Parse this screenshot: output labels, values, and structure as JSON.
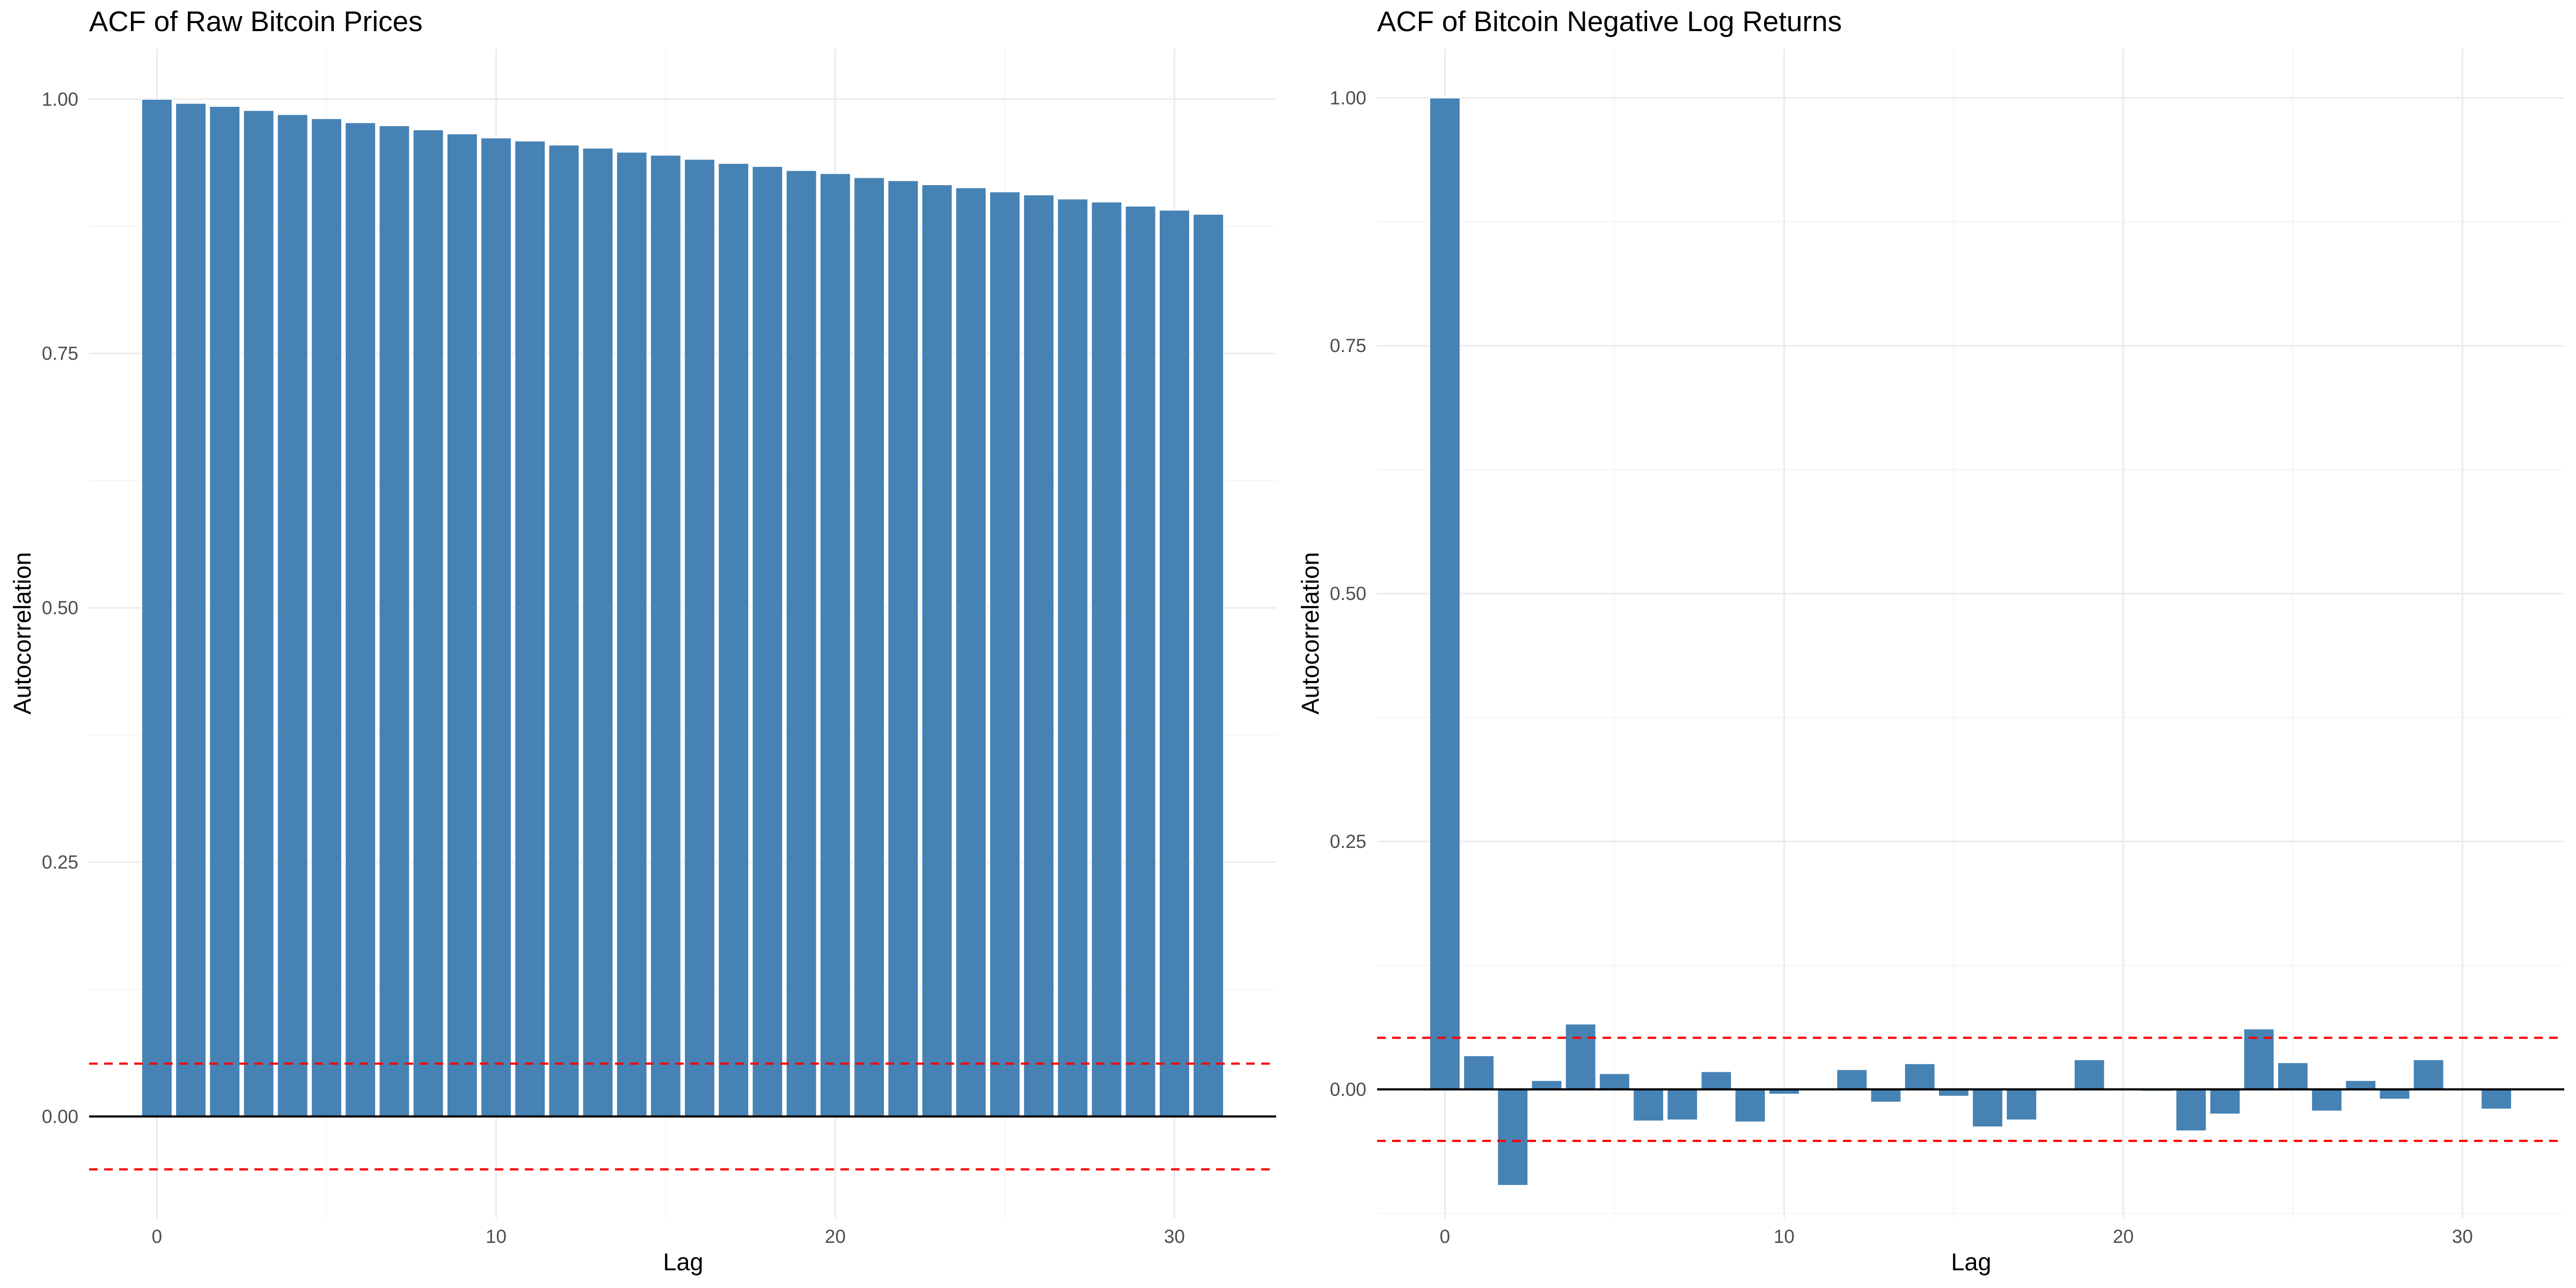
{
  "colors": {
    "bar": "#4682b4",
    "bar_stroke": "#ffffff",
    "confidence_line": "#ff0000",
    "zero_line": "#000000",
    "grid_major": "#ebebeb",
    "grid_minor": "#f5f5f5",
    "background": "#ffffff"
  },
  "chart_data": [
    {
      "type": "bar",
      "title": "ACF of Raw Bitcoin Prices",
      "xlabel": "Lag",
      "ylabel": "Autocorrelation",
      "x": [
        0,
        1,
        2,
        3,
        4,
        5,
        6,
        7,
        8,
        9,
        10,
        11,
        12,
        13,
        14,
        15,
        16,
        17,
        18,
        19,
        20,
        21,
        22,
        23,
        24,
        25,
        26,
        27,
        28,
        29,
        30,
        31
      ],
      "values": [
        1.0,
        0.996,
        0.993,
        0.989,
        0.985,
        0.981,
        0.977,
        0.974,
        0.97,
        0.966,
        0.962,
        0.959,
        0.955,
        0.952,
        0.948,
        0.945,
        0.941,
        0.937,
        0.934,
        0.93,
        0.927,
        0.923,
        0.92,
        0.916,
        0.913,
        0.909,
        0.906,
        0.902,
        0.899,
        0.895,
        0.891,
        0.887
      ],
      "confidence_bounds": [
        0.052,
        -0.052
      ],
      "xlim": [
        -2,
        33
      ],
      "ylim": [
        -0.1,
        1.05
      ],
      "x_ticks": [
        0,
        10,
        20,
        30
      ],
      "y_ticks": [
        0.0,
        0.25,
        0.5,
        0.75,
        1.0
      ],
      "x_tick_labels": [
        "0",
        "10",
        "20",
        "30"
      ],
      "y_tick_labels": [
        "0.00",
        "0.25",
        "0.50",
        "0.75",
        "1.00"
      ],
      "grid": true
    },
    {
      "type": "bar",
      "title": "ACF of Bitcoin Negative Log Returns",
      "xlabel": "Lag",
      "ylabel": "Autocorrelation",
      "x": [
        0,
        1,
        2,
        3,
        4,
        5,
        6,
        7,
        8,
        9,
        10,
        11,
        12,
        13,
        14,
        15,
        16,
        17,
        18,
        19,
        20,
        21,
        22,
        23,
        24,
        25,
        26,
        27,
        28,
        29,
        30,
        31
      ],
      "values": [
        1.0,
        0.034,
        -0.097,
        0.009,
        0.066,
        0.016,
        -0.032,
        -0.031,
        0.018,
        -0.033,
        -0.005,
        0.0,
        0.02,
        -0.013,
        0.026,
        -0.007,
        -0.038,
        -0.031,
        0.0,
        0.03,
        0.0,
        -0.002,
        -0.042,
        -0.025,
        0.061,
        0.027,
        -0.022,
        0.009,
        -0.01,
        0.03,
        0.0,
        -0.02
      ],
      "confidence_bounds": [
        0.052,
        -0.052
      ],
      "xlim": [
        -2,
        33
      ],
      "ylim": [
        -0.13,
        1.05
      ],
      "x_ticks": [
        0,
        10,
        20,
        30
      ],
      "y_ticks": [
        0.0,
        0.25,
        0.5,
        0.75,
        1.0
      ],
      "x_tick_labels": [
        "0",
        "10",
        "20",
        "30"
      ],
      "y_tick_labels": [
        "0.00",
        "0.25",
        "0.50",
        "0.75",
        "1.00"
      ],
      "grid": true
    }
  ]
}
